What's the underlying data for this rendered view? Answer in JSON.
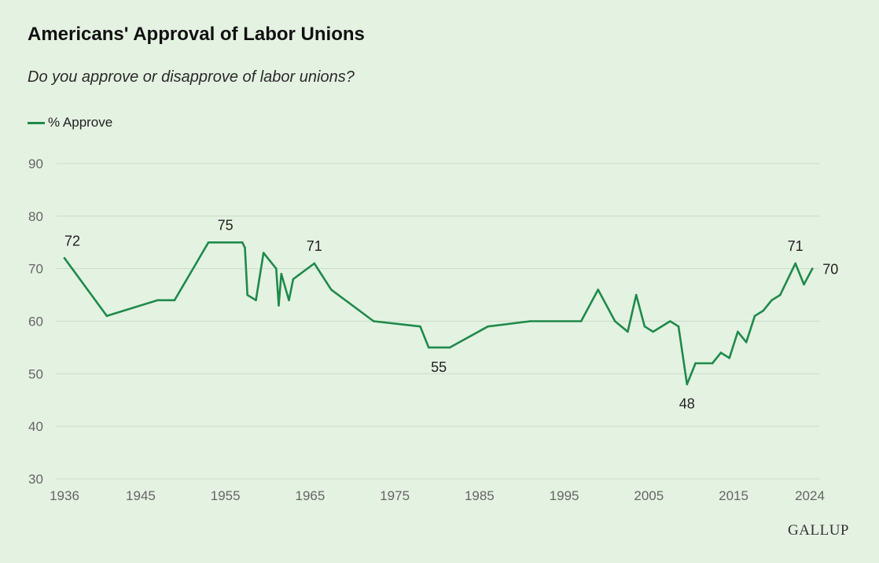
{
  "header": {
    "title": "Americans' Approval of Labor Unions",
    "subtitle": "Do you approve or disapprove of labor unions?"
  },
  "legend": {
    "label": "% Approve"
  },
  "brand": "GALLUP",
  "colors": {
    "line": "#1f8a4c",
    "grid": "#c9dcc6",
    "background": "#e4f2e1"
  },
  "chart_data": {
    "type": "line",
    "title": "Americans' Approval of Labor Unions",
    "xlabel": "",
    "ylabel": "",
    "xlim": [
      1936,
      2024
    ],
    "ylim": [
      30,
      90
    ],
    "grid": true,
    "legend_position": "top-left",
    "xticks": [
      1936,
      1945,
      1955,
      1965,
      1975,
      1985,
      1995,
      2005,
      2015,
      2024
    ],
    "yticks": [
      30,
      40,
      50,
      60,
      70,
      80,
      90
    ],
    "series": [
      {
        "name": "% Approve",
        "x": [
          1936,
          1941,
          1947,
          1949,
          1953,
          1957,
          1957.3,
          1957.6,
          1958.6,
          1959,
          1959.5,
          1961,
          1961.3,
          1961.6,
          1962.5,
          1963,
          1965.5,
          1967.5,
          1972.5,
          1978,
          1979,
          1981.5,
          1986,
          1991,
          1997,
          1999,
          2001,
          2002.5,
          2003.5,
          2004.5,
          2005.5,
          2007.5,
          2008.5,
          2009.5,
          2010.5,
          2012.5,
          2013.5,
          2014.5,
          2015.5,
          2016.5,
          2017.5,
          2018.5,
          2019.5,
          2020.5,
          2022.3,
          2023.3,
          2024.3
        ],
        "values": [
          72,
          61,
          64,
          64,
          75,
          75,
          74,
          65,
          64,
          68,
          73,
          70,
          63,
          69,
          64,
          68,
          71,
          66,
          60,
          59,
          55,
          55,
          59,
          60,
          60,
          66,
          60,
          58,
          65,
          59,
          58,
          60,
          59,
          48,
          52,
          52,
          54,
          53,
          58,
          56,
          61,
          62,
          64,
          65,
          71,
          67,
          70
        ]
      }
    ],
    "annotations": [
      {
        "label": "72",
        "x": 1936,
        "y": 72,
        "pos": "above"
      },
      {
        "label": "75",
        "x": 1955,
        "y": 75,
        "pos": "above"
      },
      {
        "label": "71",
        "x": 1965.5,
        "y": 71,
        "pos": "above"
      },
      {
        "label": "55",
        "x": 1980.2,
        "y": 55,
        "pos": "below"
      },
      {
        "label": "48",
        "x": 2009.5,
        "y": 48,
        "pos": "below"
      },
      {
        "label": "71",
        "x": 2022.3,
        "y": 71,
        "pos": "above"
      },
      {
        "label": "70",
        "x": 2024.3,
        "y": 70,
        "pos": "right"
      }
    ]
  }
}
